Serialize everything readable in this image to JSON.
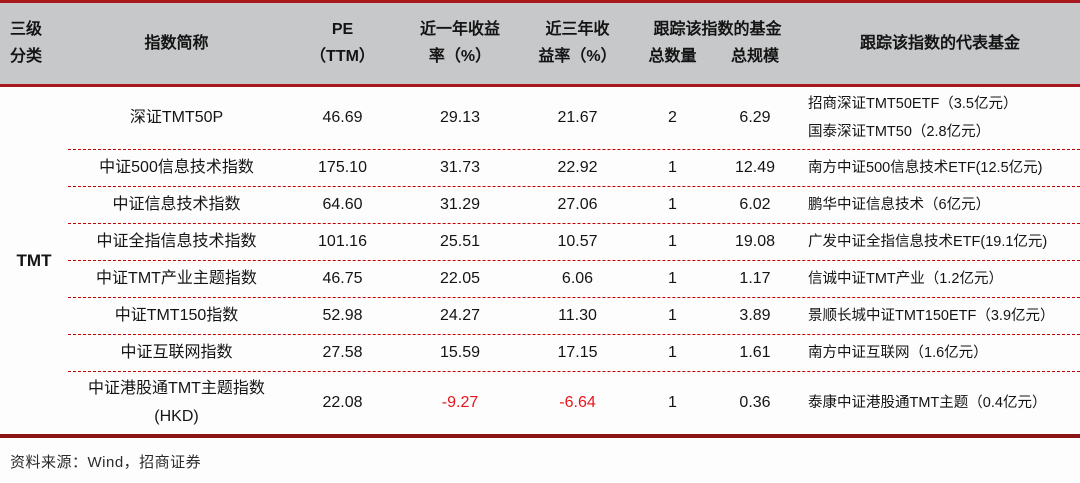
{
  "header": {
    "category_line1": "三级",
    "category_line2": "分类",
    "index_name": "指数简称",
    "pe_line1": "PE",
    "pe_line2": "（TTM）",
    "return_1y_line1": "近一年收益",
    "return_1y_line2": "率（%）",
    "return_3y_line1": "近三年收",
    "return_3y_line2": "益率（%）",
    "funds_group": "跟踪该指数的基金",
    "fund_count": "总数量",
    "fund_scale": "总规模",
    "representative": "跟踪该指数的代表基金"
  },
  "category_label": "TMT",
  "rows": [
    {
      "name": "深证TMT50P",
      "pe": "46.69",
      "r1y": "29.13",
      "r3y": "21.67",
      "count": "2",
      "scale": "6.29",
      "funds": [
        "招商深证TMT50ETF（3.5亿元）",
        "国泰深证TMT50（2.8亿元）"
      ]
    },
    {
      "name": "中证500信息技术指数",
      "pe": "175.10",
      "r1y": "31.73",
      "r3y": "22.92",
      "count": "1",
      "scale": "12.49",
      "funds": [
        "南方中证500信息技术ETF(12.5亿元)"
      ]
    },
    {
      "name": "中证信息技术指数",
      "pe": "64.60",
      "r1y": "31.29",
      "r3y": "27.06",
      "count": "1",
      "scale": "6.02",
      "funds": [
        "鹏华中证信息技术（6亿元）"
      ]
    },
    {
      "name": "中证全指信息技术指数",
      "pe": "101.16",
      "r1y": "25.51",
      "r3y": "10.57",
      "count": "1",
      "scale": "19.08",
      "funds": [
        "广发中证全指信息技术ETF(19.1亿元)"
      ]
    },
    {
      "name": "中证TMT产业主题指数",
      "pe": "46.75",
      "r1y": "22.05",
      "r3y": "6.06",
      "count": "1",
      "scale": "1.17",
      "funds": [
        "信诚中证TMT产业（1.2亿元）"
      ]
    },
    {
      "name": "中证TMT150指数",
      "pe": "52.98",
      "r1y": "24.27",
      "r3y": "11.30",
      "count": "1",
      "scale": "3.89",
      "funds": [
        "景顺长城中证TMT150ETF（3.9亿元）"
      ]
    },
    {
      "name": "中证互联网指数",
      "pe": "27.58",
      "r1y": "15.59",
      "r3y": "17.15",
      "count": "1",
      "scale": "1.61",
      "funds": [
        "南方中证互联网（1.6亿元）"
      ]
    },
    {
      "name": "中证港股通TMT主题指数(HKD)",
      "pe": "22.08",
      "r1y": "-9.27",
      "r3y": "-6.64",
      "count": "1",
      "scale": "0.36",
      "funds": [
        "泰康中证港股通TMT主题（0.4亿元）"
      ]
    }
  ],
  "footer": {
    "source": "资料来源：Wind，招商证券"
  },
  "colors": {
    "border_red": "#a8191d",
    "dashed_red": "#c00000",
    "header_bg": "#c7c8ca",
    "negative": "#e8151d",
    "bottom_border": "#8a1416"
  }
}
